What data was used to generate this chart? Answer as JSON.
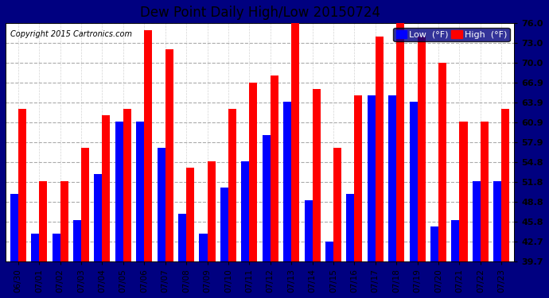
{
  "title": "Dew Point Daily High/Low 20150724",
  "copyright": "Copyright 2015 Cartronics.com",
  "categories": [
    "06/30",
    "07/01",
    "07/02",
    "07/03",
    "07/04",
    "07/05",
    "07/06",
    "07/07",
    "07/08",
    "07/09",
    "07/10",
    "07/11",
    "07/12",
    "07/13",
    "07/14",
    "07/15",
    "07/16",
    "07/17",
    "07/18",
    "07/19",
    "07/20",
    "07/21",
    "07/22",
    "07/23"
  ],
  "low": [
    50.0,
    44.0,
    44.0,
    46.0,
    53.0,
    61.0,
    61.0,
    57.0,
    47.0,
    44.0,
    51.0,
    55.0,
    59.0,
    64.0,
    49.0,
    42.8,
    50.0,
    65.0,
    65.0,
    64.0,
    45.0,
    46.0,
    52.0,
    52.0
  ],
  "high": [
    63.0,
    52.0,
    52.0,
    57.0,
    62.0,
    63.0,
    75.0,
    72.0,
    54.0,
    55.0,
    63.0,
    67.0,
    68.0,
    76.0,
    66.0,
    57.0,
    65.0,
    74.0,
    76.0,
    74.0,
    70.0,
    61.0,
    61.0,
    63.0
  ],
  "ylim_low": 39.7,
  "ylim_high": 76.0,
  "yticks": [
    39.7,
    42.7,
    45.8,
    48.8,
    51.8,
    54.8,
    57.9,
    60.9,
    63.9,
    66.9,
    70.0,
    73.0,
    76.0
  ],
  "bar_width": 0.38,
  "low_color": "#0000ff",
  "high_color": "#ff0000",
  "outer_bg": "#000080",
  "plot_bg": "#ffffff",
  "title_fontsize": 12,
  "legend_low_label": "Low  (°F)",
  "legend_high_label": "High  (°F)"
}
